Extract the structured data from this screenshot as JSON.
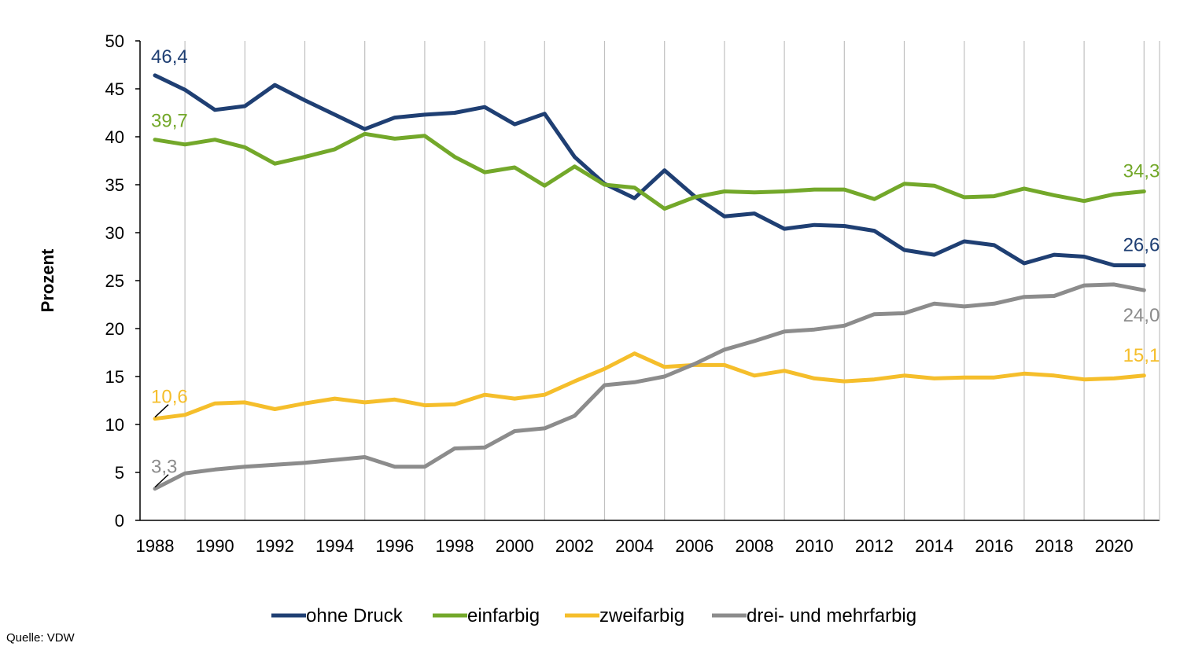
{
  "chart_data": {
    "type": "line",
    "ylabel": "Prozent",
    "ylim": [
      0,
      50
    ],
    "yticks": [
      0,
      5,
      10,
      15,
      20,
      25,
      30,
      35,
      40,
      45,
      50
    ],
    "xlim": [
      1988,
      2021
    ],
    "xticks": [
      1988,
      1990,
      1992,
      1994,
      1996,
      1998,
      2000,
      2002,
      2004,
      2006,
      2008,
      2010,
      2012,
      2014,
      2016,
      2018,
      2020
    ],
    "grid": "vertical",
    "legend": "bottom",
    "x": [
      1988,
      1989,
      1990,
      1991,
      1992,
      1993,
      1994,
      1995,
      1996,
      1997,
      1998,
      1999,
      2000,
      2001,
      2002,
      2003,
      2004,
      2005,
      2006,
      2007,
      2008,
      2009,
      2010,
      2011,
      2012,
      2013,
      2014,
      2015,
      2016,
      2017,
      2018,
      2019,
      2020,
      2021
    ],
    "series": [
      {
        "name": "ohne Druck",
        "color": "#1f3f73",
        "values": [
          46.4,
          44.9,
          42.8,
          43.2,
          45.4,
          43.8,
          42.3,
          40.8,
          42.0,
          42.3,
          42.5,
          43.1,
          41.3,
          42.4,
          37.9,
          35.1,
          33.6,
          36.5,
          33.8,
          31.7,
          32.0,
          30.4,
          30.8,
          30.7,
          30.2,
          28.2,
          27.7,
          29.1,
          28.7,
          26.8,
          27.7,
          27.5,
          26.6,
          26.6
        ],
        "labels": [
          {
            "x": 1988,
            "text": "46,4"
          },
          {
            "x": 2021,
            "text": "26,6"
          }
        ]
      },
      {
        "name": "einfarbig",
        "color": "#73a82a",
        "values": [
          39.7,
          39.2,
          39.7,
          38.9,
          37.2,
          37.9,
          38.7,
          40.3,
          39.8,
          40.1,
          37.9,
          36.3,
          36.8,
          34.9,
          36.9,
          35.0,
          34.7,
          32.5,
          33.7,
          34.3,
          34.2,
          34.3,
          34.5,
          34.5,
          33.5,
          35.1,
          34.9,
          33.7,
          33.8,
          34.6,
          33.9,
          33.3,
          34.0,
          34.3
        ],
        "labels": [
          {
            "x": 1988,
            "text": "39,7"
          },
          {
            "x": 2021,
            "text": "34,3"
          }
        ]
      },
      {
        "name": "zweifarbig",
        "color": "#f5be2b",
        "values": [
          10.6,
          11.0,
          12.2,
          12.3,
          11.6,
          12.2,
          12.7,
          12.3,
          12.6,
          12.0,
          12.1,
          13.1,
          12.7,
          13.1,
          14.5,
          15.8,
          17.4,
          16.0,
          16.2,
          16.2,
          15.1,
          15.6,
          14.8,
          14.5,
          14.7,
          15.1,
          14.8,
          14.9,
          14.9,
          15.3,
          15.1,
          14.7,
          14.8,
          15.1
        ],
        "labels": [
          {
            "x": 1988,
            "text": "10,6"
          },
          {
            "x": 2021,
            "text": "15,1"
          }
        ]
      },
      {
        "name": "drei- und mehrfarbig",
        "color": "#8c8c8c",
        "values": [
          3.3,
          4.9,
          5.3,
          5.6,
          5.8,
          6.0,
          6.3,
          6.6,
          5.6,
          5.6,
          7.5,
          7.6,
          9.3,
          9.6,
          10.9,
          14.1,
          14.4,
          15.0,
          16.3,
          17.8,
          18.7,
          19.7,
          19.9,
          20.3,
          21.5,
          21.6,
          22.6,
          22.3,
          22.6,
          23.3,
          23.4,
          24.5,
          24.6,
          24.0
        ],
        "labels": [
          {
            "x": 1988,
            "text": "3,3"
          },
          {
            "x": 2021,
            "text": "24,0"
          }
        ]
      }
    ]
  },
  "source": "Quelle: VDW"
}
